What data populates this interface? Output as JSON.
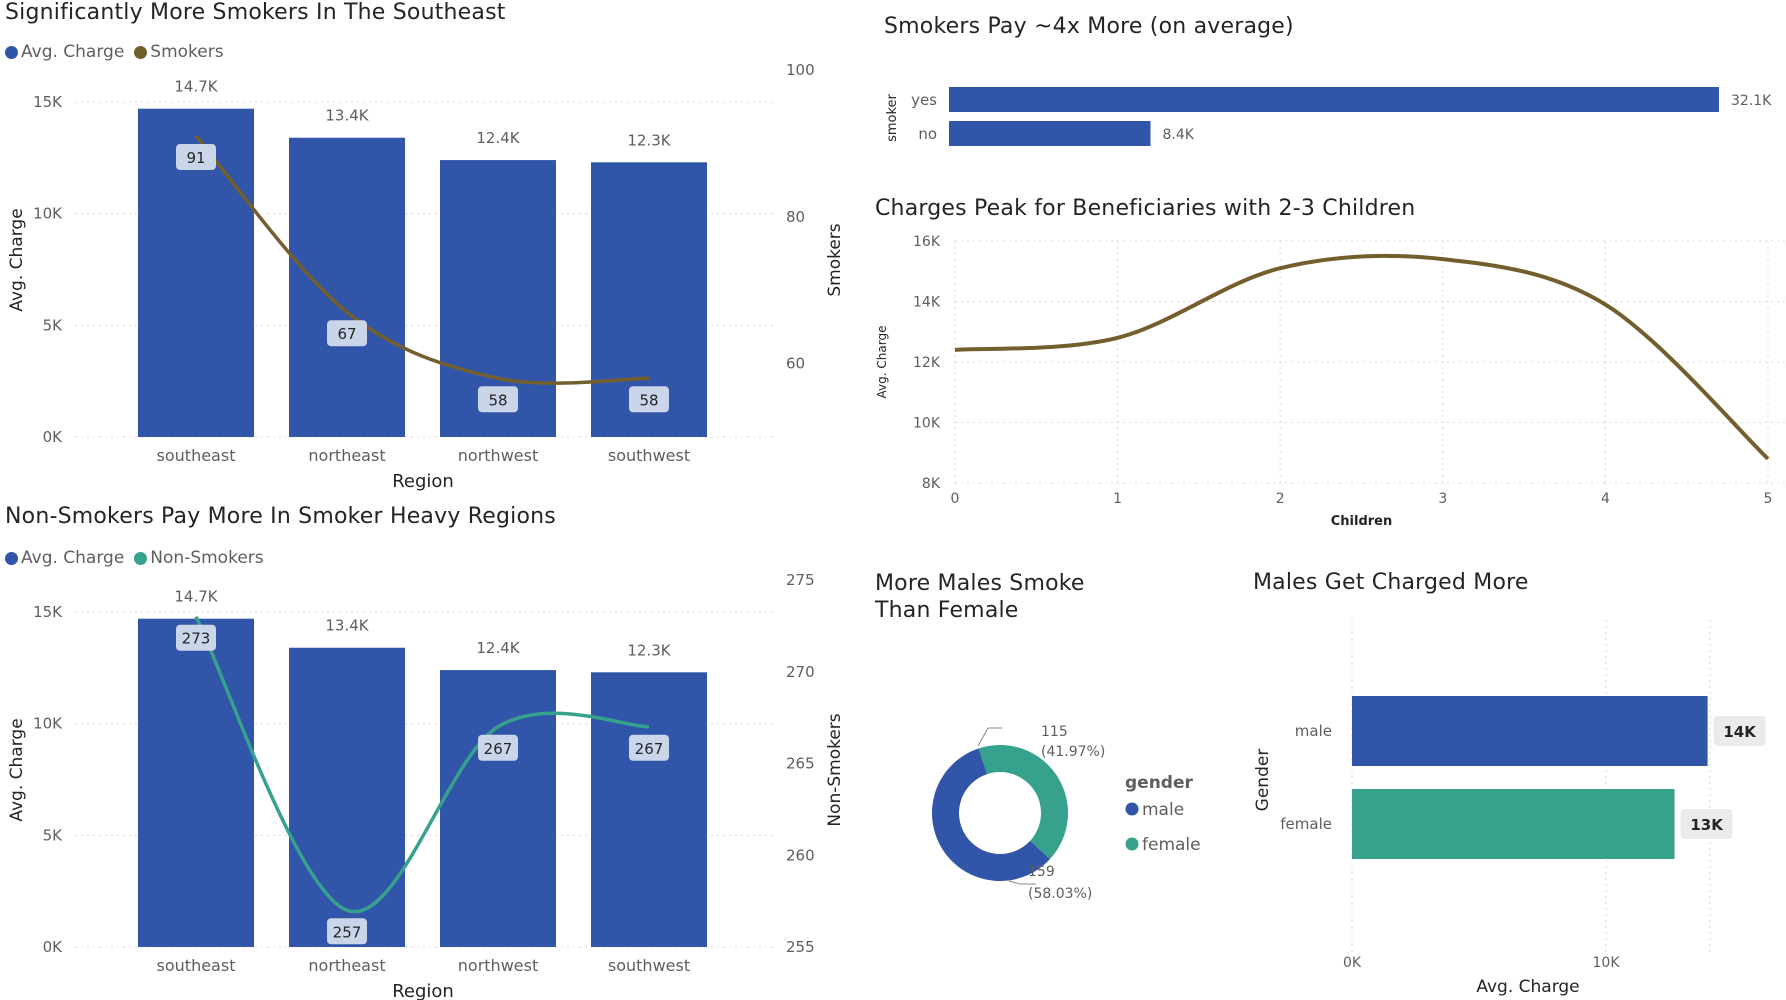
{
  "colors": {
    "avg_charge": "#3155a8",
    "smokers": "#735f2d",
    "nonsmokers": "#36a18d",
    "male": "#3155a8",
    "female": "#36a18d"
  },
  "chart_data": [
    {
      "id": "smokers_region",
      "type": "bar",
      "title": "Significantly More Smokers In The Southeast",
      "legend": [
        "Avg. Charge",
        "Smokers"
      ],
      "categories": [
        "southeast",
        "northeast",
        "northwest",
        "southwest"
      ],
      "bar_series": {
        "name": "Avg. Charge",
        "values": [
          14700,
          13400,
          12400,
          12300
        ],
        "labels": [
          "14.7K",
          "13.4K",
          "12.4K",
          "12.3K"
        ]
      },
      "line_series": {
        "name": "Smokers",
        "values": [
          91,
          67,
          58,
          58
        ]
      },
      "xlabel": "Region",
      "ylabel": "Avg. Charge",
      "y2label": "Smokers",
      "ylim": [
        0,
        15000
      ],
      "y_ticks": [
        "0K",
        "5K",
        "10K",
        "15K"
      ],
      "y2lim": [
        50,
        100
      ],
      "y2_ticks": [
        "60",
        "80",
        "100"
      ]
    },
    {
      "id": "nonsmokers_region",
      "type": "bar",
      "title": "Non-Smokers Pay More In Smoker Heavy Regions",
      "legend": [
        "Avg. Charge",
        "Non-Smokers"
      ],
      "categories": [
        "southeast",
        "northeast",
        "northwest",
        "southwest"
      ],
      "bar_series": {
        "name": "Avg. Charge",
        "values": [
          14700,
          13400,
          12400,
          12300
        ],
        "labels": [
          "14.7K",
          "13.4K",
          "12.4K",
          "12.3K"
        ]
      },
      "line_series": {
        "name": "Non-Smokers",
        "values": [
          273,
          257,
          267,
          267
        ]
      },
      "xlabel": "Region",
      "ylabel": "Avg. Charge",
      "y2label": "Non-Smokers",
      "ylim": [
        0,
        15000
      ],
      "y_ticks": [
        "0K",
        "5K",
        "10K",
        "15K"
      ],
      "y2lim": [
        255,
        275
      ],
      "y2_ticks": [
        "255",
        "260",
        "265",
        "270",
        "275"
      ]
    },
    {
      "id": "smoker_pay",
      "type": "bar",
      "title": "Smokers Pay ~4x More (on average)",
      "categories": [
        "yes",
        "no"
      ],
      "values": [
        32100,
        8400
      ],
      "labels": [
        "32.1K",
        "8.4K"
      ],
      "ylabel": "smoker"
    },
    {
      "id": "children",
      "type": "line",
      "title": "Charges Peak for Beneficiaries with 2-3 Children",
      "x": [
        0,
        1,
        2,
        3,
        4,
        5
      ],
      "values": [
        12400,
        12800,
        15100,
        15400,
        13900,
        8800
      ],
      "xlabel": "Children",
      "ylabel": "Avg. Charge",
      "ylim": [
        8000,
        16000
      ],
      "y_ticks": [
        "8K",
        "10K",
        "12K",
        "14K",
        "16K"
      ]
    },
    {
      "id": "gender_smoke",
      "type": "pie",
      "title": "More Males Smoke Than Female",
      "legend_title": "gender",
      "slices": [
        {
          "name": "male",
          "value": 159,
          "label": "159",
          "pct": "(58.03%)"
        },
        {
          "name": "female",
          "value": 115,
          "label": "115",
          "pct": "(41.97%)"
        }
      ]
    },
    {
      "id": "gender_charge",
      "type": "bar",
      "title": "Males Get Charged More",
      "categories": [
        "male",
        "female"
      ],
      "values": [
        14000,
        12700
      ],
      "labels": [
        "14K",
        "13K"
      ],
      "xlabel": "Avg. Charge",
      "ylabel": "Gender",
      "xlim": [
        0,
        16000
      ],
      "x_ticks": [
        "0K",
        "10K"
      ]
    }
  ]
}
